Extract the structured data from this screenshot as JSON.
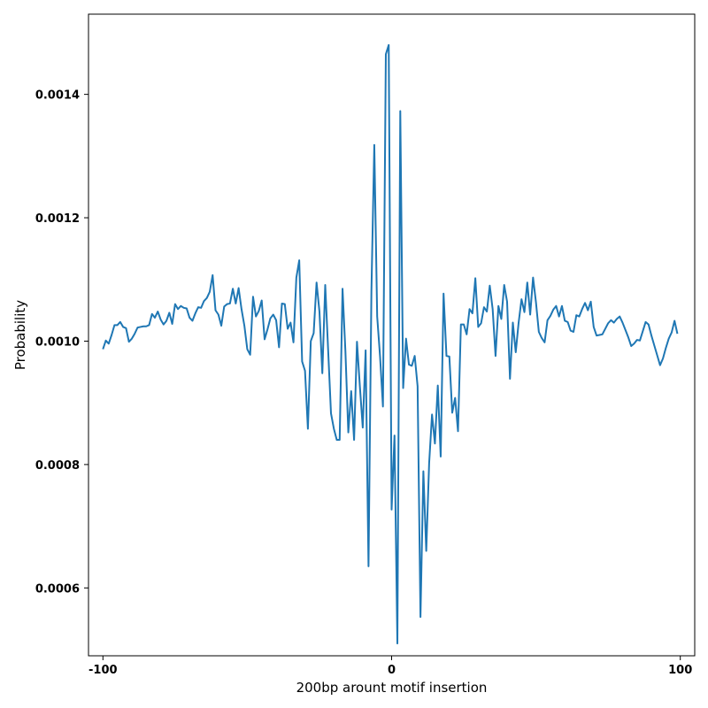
{
  "chart_data": {
    "type": "line",
    "title": "",
    "xlabel": "200bp arount motif insertion",
    "ylabel": "Probability",
    "xlim": [
      -105,
      105
    ],
    "ylim": [
      0.00049,
      0.00153
    ],
    "xticks": [
      -100,
      0,
      100
    ],
    "xtick_labels": [
      "-100",
      "0",
      "100"
    ],
    "yticks": [
      0.0006,
      0.0008,
      0.001,
      0.0012,
      0.0014
    ],
    "ytick_labels": [
      "0.0006",
      "0.0008",
      "0.0010",
      "0.0012",
      "0.0014"
    ],
    "grid": false,
    "legend": "none",
    "series": [
      {
        "color": "#1f77b4",
        "x": [
          -100,
          -99,
          -98,
          -97,
          -96,
          -95,
          -94,
          -93,
          -92,
          -91,
          -90,
          -89,
          -88,
          -87,
          -86,
          -85,
          -84,
          -83,
          -82,
          -81,
          -80,
          -79,
          -78,
          -77,
          -76,
          -75,
          -74,
          -73,
          -72,
          -71,
          -70,
          -69,
          -68,
          -67,
          -66,
          -65,
          -64,
          -63,
          -62,
          -61,
          -60,
          -59,
          -58,
          -57,
          -56,
          -55,
          -54,
          -53,
          -52,
          -51,
          -50,
          -49,
          -48,
          -47,
          -46,
          -45,
          -44,
          -43,
          -42,
          -41,
          -40,
          -39,
          -38,
          -37,
          -36,
          -35,
          -34,
          -33,
          -32,
          -31,
          -30,
          -29,
          -28,
          -27,
          -26,
          -25,
          -24,
          -23,
          -22,
          -21,
          -20,
          -19,
          -18,
          -17,
          -16,
          -15,
          -14,
          -13,
          -12,
          -11,
          -10,
          -9,
          -8,
          -7,
          -6,
          -5,
          -4,
          -3,
          -2,
          -1,
          0,
          1,
          2,
          3,
          4,
          5,
          6,
          7,
          8,
          9,
          10,
          11,
          12,
          13,
          14,
          15,
          16,
          17,
          18,
          19,
          20,
          21,
          22,
          23,
          24,
          25,
          26,
          27,
          28,
          29,
          30,
          31,
          32,
          33,
          34,
          35,
          36,
          37,
          38,
          39,
          40,
          41,
          42,
          43,
          44,
          45,
          46,
          47,
          48,
          49,
          50,
          51,
          52,
          53,
          54,
          55,
          56,
          57,
          58,
          59,
          60,
          61,
          62,
          63,
          64,
          65,
          66,
          67,
          68,
          69,
          70,
          71,
          72,
          73,
          74,
          75,
          76,
          77,
          78,
          79,
          80,
          81,
          82,
          83,
          84,
          85,
          86,
          87,
          88,
          89,
          90,
          91,
          92,
          93,
          94,
          95,
          96,
          97,
          98,
          99
        ],
        "y": [
          0.000987,
          0.001001,
          0.000996,
          0.00101,
          0.001026,
          0.001026,
          0.001031,
          0.001023,
          0.001021,
          0.000999,
          0.001004,
          0.001012,
          0.001022,
          0.001023,
          0.001024,
          0.001024,
          0.001026,
          0.001044,
          0.001038,
          0.001048,
          0.001035,
          0.001027,
          0.001033,
          0.001046,
          0.001028,
          0.00106,
          0.001052,
          0.001057,
          0.001054,
          0.001053,
          0.001038,
          0.001033,
          0.001045,
          0.001055,
          0.001054,
          0.001065,
          0.00107,
          0.00108,
          0.001107,
          0.00105,
          0.001043,
          0.001025,
          0.001056,
          0.00106,
          0.001061,
          0.001085,
          0.001061,
          0.001086,
          0.001052,
          0.001025,
          0.000987,
          0.000978,
          0.001072,
          0.00104,
          0.001049,
          0.001066,
          0.001003,
          0.001019,
          0.001037,
          0.001043,
          0.001034,
          0.00099,
          0.001061,
          0.00106,
          0.00102,
          0.00103,
          0.000998,
          0.001103,
          0.001131,
          0.000967,
          0.000952,
          0.000858,
          0.001,
          0.001013,
          0.001095,
          0.001048,
          0.000948,
          0.001091,
          0.000987,
          0.000883,
          0.000858,
          0.00084,
          0.00084,
          0.001085,
          0.000983,
          0.000852,
          0.000919,
          0.00084,
          0.000999,
          0.000927,
          0.00086,
          0.000985,
          0.000635,
          0.00108,
          0.001318,
          0.00104,
          0.000975,
          0.000894,
          0.001465,
          0.00148,
          0.000727,
          0.000847,
          0.00051,
          0.001373,
          0.000924,
          0.001004,
          0.000962,
          0.00096,
          0.000976,
          0.000927,
          0.000553,
          0.000789,
          0.00066,
          0.000802,
          0.000881,
          0.000834,
          0.000928,
          0.000813,
          0.001077,
          0.000976,
          0.000975,
          0.000884,
          0.000908,
          0.000854,
          0.001027,
          0.001027,
          0.001011,
          0.001052,
          0.001045,
          0.001102,
          0.001023,
          0.001029,
          0.001055,
          0.001048,
          0.00109,
          0.001052,
          0.000976,
          0.001057,
          0.001036,
          0.001091,
          0.001064,
          0.000939,
          0.00103,
          0.000982,
          0.00103,
          0.001068,
          0.001047,
          0.001095,
          0.001043,
          0.001103,
          0.001063,
          0.001015,
          0.001005,
          0.000998,
          0.001034,
          0.001041,
          0.001051,
          0.001057,
          0.00104,
          0.001057,
          0.001033,
          0.001031,
          0.001017,
          0.001015,
          0.001042,
          0.00104,
          0.001052,
          0.001062,
          0.00105,
          0.001064,
          0.001023,
          0.001009,
          0.00101,
          0.001011,
          0.00102,
          0.001029,
          0.001034,
          0.00103,
          0.001036,
          0.00104,
          0.00103,
          0.001018,
          0.001006,
          0.000992,
          0.000996,
          0.001002,
          0.001001,
          0.001016,
          0.001031,
          0.001027,
          0.001009,
          0.000993,
          0.000977,
          0.000961,
          0.000972,
          0.000989,
          0.001004,
          0.001014,
          0.001033,
          0.001012
        ]
      }
    ]
  }
}
